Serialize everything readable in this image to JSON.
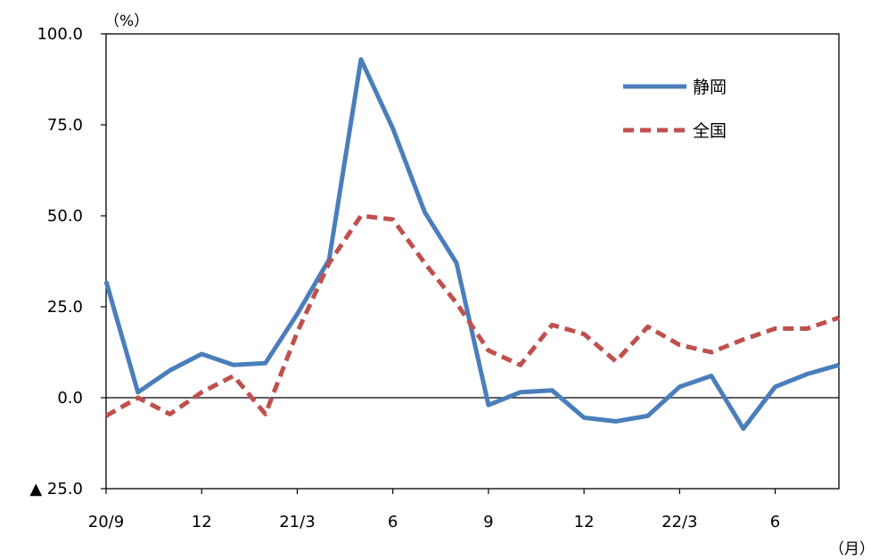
{
  "chart_data": {
    "type": "line",
    "y_unit_label": "（%）",
    "x_unit_label": "（月）",
    "ylim": [
      -25,
      100
    ],
    "y_ticks": [
      {
        "value": 100,
        "label": "100.0"
      },
      {
        "value": 75,
        "label": "75.0"
      },
      {
        "value": 50,
        "label": "50.0"
      },
      {
        "value": 25,
        "label": "25.0"
      },
      {
        "value": 0,
        "label": "0.0"
      },
      {
        "value": -25,
        "label": "▲ 25.0"
      }
    ],
    "x_ticks": [
      {
        "index": 0,
        "label": "20/9"
      },
      {
        "index": 3,
        "label": "12"
      },
      {
        "index": 6,
        "label": "21/3"
      },
      {
        "index": 9,
        "label": "6"
      },
      {
        "index": 12,
        "label": "9"
      },
      {
        "index": 15,
        "label": "12"
      },
      {
        "index": 18,
        "label": "22/3"
      },
      {
        "index": 21,
        "label": "6"
      }
    ],
    "x": [
      "20/9",
      "20/10",
      "20/11",
      "20/12",
      "21/1",
      "21/2",
      "21/3",
      "21/4",
      "21/5",
      "21/6",
      "21/7",
      "21/8",
      "21/9",
      "21/10",
      "21/11",
      "21/12",
      "22/1",
      "22/2",
      "22/3",
      "22/4",
      "22/5",
      "22/6",
      "22/7",
      "22/8"
    ],
    "series": [
      {
        "name": "静岡",
        "color": "#4a7ebb",
        "dash": "solid",
        "values": [
          32.0,
          1.5,
          7.5,
          12.0,
          9.0,
          9.5,
          23.0,
          38.0,
          93.0,
          74.0,
          51.0,
          37.0,
          -2.0,
          1.5,
          2.0,
          -5.5,
          -6.5,
          -5.0,
          3.0,
          6.0,
          -8.5,
          3.0,
          6.5,
          9.0
        ]
      },
      {
        "name": "全国",
        "color": "#c0504d",
        "dash": "dashed",
        "values": [
          -5.0,
          0.0,
          -4.5,
          1.5,
          6.0,
          -4.5,
          18.0,
          37.0,
          50.0,
          49.0,
          37.0,
          26.0,
          13.0,
          9.0,
          20.0,
          17.5,
          10.0,
          19.5,
          14.5,
          12.5,
          16.0,
          19.0,
          19.0,
          22.0
        ]
      }
    ],
    "legend_position": "top-right",
    "grid": false
  }
}
